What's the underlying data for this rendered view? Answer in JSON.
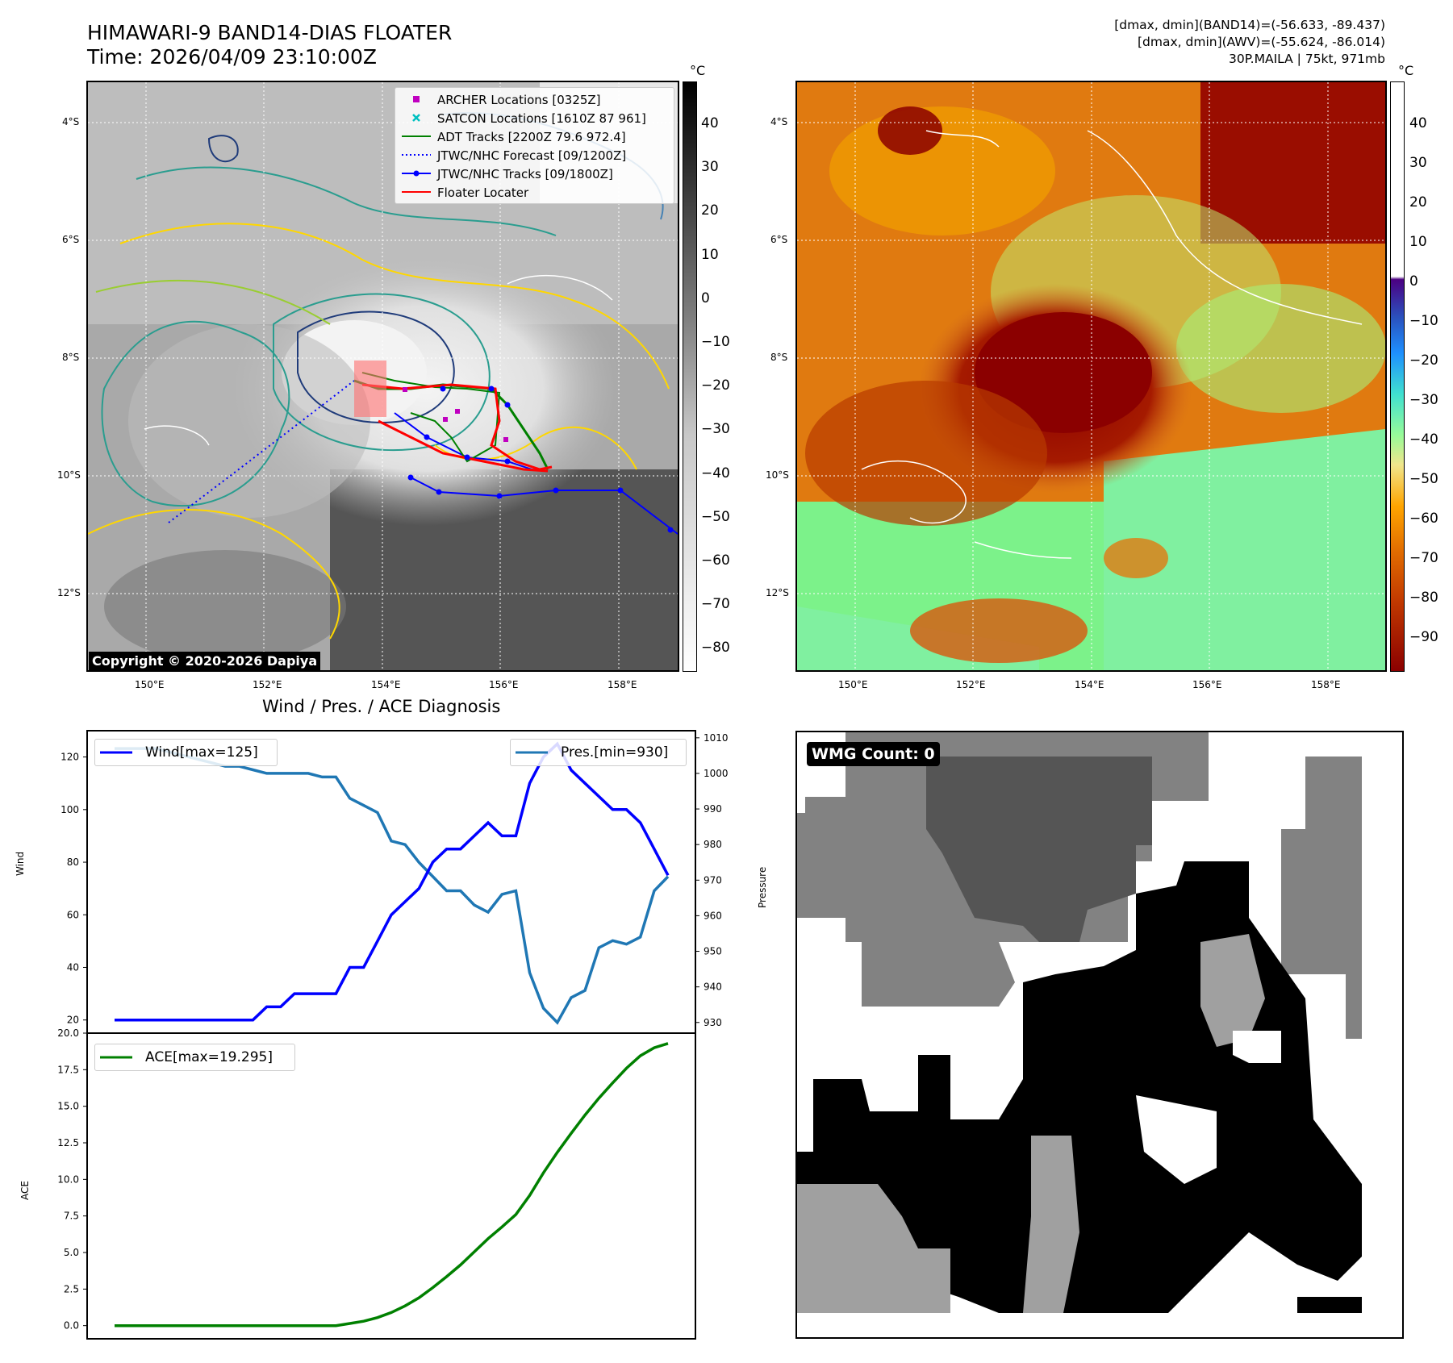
{
  "header": {
    "title_line1": "HIMAWARI-9 BAND14-DIAS FLOATER",
    "title_line2": "Time: 2026/04/09 23:10:00Z",
    "info_line1": "[dmax, dmin](BAND14)=(-56.633, -89.437)",
    "info_line2": "[dmax, dmin](AWV)=(-55.624, -86.014)",
    "info_line3": "30P.MAILA | 75kt, 971mb"
  },
  "map": {
    "lat_ticks": [
      "4°S",
      "6°S",
      "8°S",
      "10°S",
      "12°S"
    ],
    "lon_ticks": [
      "150°E",
      "152°E",
      "154°E",
      "156°E",
      "158°E"
    ],
    "copyright": "Copyright © 2020-2026 Dapiya",
    "legend": [
      {
        "label": "ARCHER Locations [0325Z]",
        "color": "#c000c0",
        "symbol": "square"
      },
      {
        "label": "SATCON Locations [1610Z 87 961]",
        "color": "#00c0c0",
        "symbol": "x"
      },
      {
        "label": "ADT Tracks [2200Z 79.6 972.4]",
        "color": "#008000",
        "symbol": "line"
      },
      {
        "label": "JTWC/NHC Forecast [09/1200Z]",
        "color": "#0000ff",
        "symbol": "dotted"
      },
      {
        "label": "JTWC/NHC Tracks [09/1800Z]",
        "color": "#0000ff",
        "symbol": "line-dot"
      },
      {
        "label": "Floater Locater",
        "color": "#ff0000",
        "symbol": "line"
      }
    ]
  },
  "colorbars": {
    "unit": "°C",
    "gray_ticks": [
      "40",
      "30",
      "20",
      "10",
      "0",
      "−10",
      "−20",
      "−30",
      "−40",
      "−50",
      "−60",
      "−70",
      "−80"
    ],
    "color_ticks": [
      "40",
      "30",
      "20",
      "10",
      "0",
      "−10",
      "−20",
      "−30",
      "−40",
      "−50",
      "−60",
      "−70",
      "−80",
      "−90"
    ]
  },
  "diagnosis": {
    "title": "Wind / Pres. / ACE Diagnosis",
    "wind_ylabel": "Wind",
    "pres_ylabel": "Pressure",
    "ace_ylabel": "ACE",
    "wind_legend": "Wind[max=125]",
    "pres_legend": "Pres.[min=930]",
    "ace_legend": "ACE[max=19.295]"
  },
  "wmg": {
    "label": "WMG Count: 0"
  },
  "chart_data": [
    {
      "type": "line",
      "title": "Wind / Pres. / ACE Diagnosis",
      "ylabel": "Wind",
      "y2label": "Pressure",
      "ylim": [
        15,
        130
      ],
      "y2lim": [
        927,
        1012
      ],
      "yticks": [
        20,
        40,
        60,
        80,
        100,
        120
      ],
      "y2ticks": [
        930,
        940,
        950,
        960,
        970,
        980,
        990,
        1000,
        1010
      ],
      "series": [
        {
          "name": "Wind[max=125]",
          "color": "#0000ff",
          "axis": "left",
          "values": [
            20,
            20,
            20,
            20,
            20,
            20,
            20,
            20,
            20,
            20,
            20,
            25,
            25,
            30,
            30,
            30,
            30,
            40,
            40,
            50,
            60,
            65,
            70,
            80,
            85,
            85,
            90,
            95,
            90,
            90,
            110,
            120,
            125,
            115,
            110,
            105,
            100,
            100,
            95,
            85,
            75
          ]
        },
        {
          "name": "Pres.[min=930]",
          "color": "#1f77b4",
          "axis": "right",
          "values": [
            1007,
            1007,
            1007,
            1007,
            1006,
            1005,
            1004,
            1003,
            1002,
            1002,
            1001,
            1000,
            1000,
            1000,
            1000,
            999,
            999,
            993,
            991,
            989,
            981,
            980,
            975,
            971,
            967,
            967,
            963,
            961,
            966,
            967,
            944,
            934,
            930,
            937,
            939,
            951,
            953,
            952,
            954,
            967,
            971
          ]
        }
      ]
    },
    {
      "type": "line",
      "ylabel": "ACE",
      "ylim": [
        -0.9,
        20
      ],
      "yticks": [
        0.0,
        2.5,
        5.0,
        7.5,
        10.0,
        12.5,
        15.0,
        17.5,
        20.0
      ],
      "series": [
        {
          "name": "ACE[max=19.295]",
          "color": "#008000",
          "values": [
            0,
            0,
            0,
            0,
            0,
            0,
            0,
            0,
            0,
            0,
            0,
            0,
            0,
            0,
            0,
            0,
            0,
            0.15,
            0.3,
            0.55,
            0.9,
            1.35,
            1.9,
            2.6,
            3.35,
            4.15,
            5.05,
            5.95,
            6.75,
            7.6,
            8.9,
            10.45,
            11.85,
            13.15,
            14.4,
            15.55,
            16.6,
            17.6,
            18.45,
            19.0,
            19.295
          ]
        }
      ]
    }
  ]
}
